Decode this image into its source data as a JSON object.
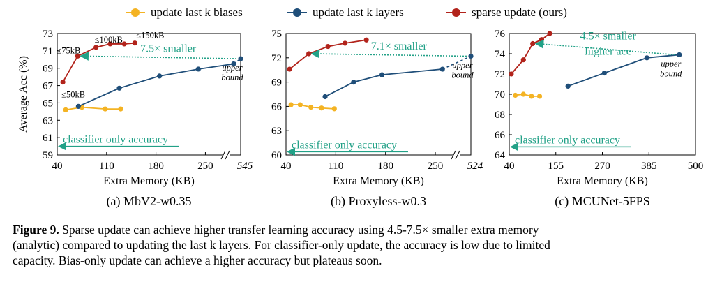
{
  "legend": {
    "biases": "update last k biases",
    "layers": "update last k layers",
    "sparse": "sparse update (ours)"
  },
  "colors": {
    "biases": "#f4b323",
    "layers": "#1f4e79",
    "sparse": "#b2231b",
    "arrow": "#22a187",
    "classifier": "#22a187"
  },
  "chart_data": [
    {
      "type": "line",
      "title": "(a)  MbV2-w0.35",
      "xlabel": "Extra Memory (KB)",
      "ylabel": "Average Acc (%)",
      "ylim": [
        59,
        73
      ],
      "yticks": [
        59,
        61,
        63,
        65,
        67,
        69,
        71,
        73
      ],
      "xlim": [
        40,
        300
      ],
      "xticks": [
        40,
        110,
        180,
        250
      ],
      "break_label": "545",
      "series": [
        {
          "name": "update last k biases",
          "x": [
            52,
            75,
            108,
            130
          ],
          "y": [
            64.2,
            64.5,
            64.3,
            64.3
          ]
        },
        {
          "name": "update last k layers",
          "x": [
            70,
            128,
            185,
            240,
            290
          ],
          "y": [
            64.6,
            66.7,
            68.1,
            68.9,
            69.5
          ]
        },
        {
          "name": "sparse update (ours)",
          "x": [
            48,
            69,
            95,
            115,
            135,
            150
          ],
          "y": [
            67.4,
            70.4,
            71.4,
            71.8,
            71.8,
            71.9
          ]
        }
      ],
      "break_point": {
        "x": 325,
        "y": 70.1
      },
      "point_labels": [
        "≤50kB",
        "≤75kB",
        "≤100kB",
        "≤150kB"
      ],
      "arrow_label": "7.5× smaller",
      "upper_bound_label": [
        "upper",
        "bound"
      ],
      "classifier_label": "classifier only accuracy",
      "classifier_y": 60.0
    },
    {
      "type": "line",
      "title": "(b)  Proxyless-w0.3",
      "xlabel": "Extra Memory (KB)",
      "ylabel": "",
      "ylim": [
        60,
        75
      ],
      "yticks": [
        60,
        63,
        66,
        69,
        72,
        75
      ],
      "xlim": [
        40,
        300
      ],
      "xticks": [
        40,
        110,
        180,
        250
      ],
      "break_label": "524",
      "series": [
        {
          "name": "update last k biases",
          "x": [
            47,
            60,
            75,
            90,
            108
          ],
          "y": [
            66.2,
            66.2,
            65.9,
            65.8,
            65.7
          ]
        },
        {
          "name": "update last k layers",
          "x": [
            95,
            135,
            175,
            260
          ],
          "y": [
            67.2,
            69.0,
            69.9,
            70.6
          ]
        },
        {
          "name": "sparse update (ours)",
          "x": [
            45,
            72,
            99,
            123,
            153
          ],
          "y": [
            70.6,
            72.5,
            73.4,
            73.8,
            74.2
          ]
        }
      ],
      "break_point": {
        "x": 312,
        "y": 72.2
      },
      "point_labels": [],
      "arrow_label": "7.1× smaller",
      "upper_bound_label": [
        "upper",
        "bound"
      ],
      "classifier_label": "classifier only accuracy",
      "classifier_y": 60.4
    },
    {
      "type": "line",
      "title": "(c)  MCUNet-5FPS",
      "xlabel": "Extra Memory (KB)",
      "ylabel": "",
      "ylim": [
        64,
        76
      ],
      "yticks": [
        64,
        66,
        68,
        70,
        72,
        74,
        76
      ],
      "xlim": [
        40,
        500
      ],
      "xticks": [
        40,
        155,
        270,
        385,
        500
      ],
      "break_label": "",
      "series": [
        {
          "name": "update last k biases",
          "x": [
            55,
            75,
            95,
            115
          ],
          "y": [
            69.9,
            70.0,
            69.8,
            69.8
          ]
        },
        {
          "name": "update last k layers",
          "x": [
            185,
            275,
            380,
            460
          ],
          "y": [
            70.8,
            72.1,
            73.6,
            73.9
          ]
        },
        {
          "name": "sparse update (ours)",
          "x": [
            45,
            75,
            98,
            120,
            140
          ],
          "y": [
            72.0,
            73.4,
            75.0,
            75.4,
            76.0
          ]
        }
      ],
      "arrow_label": "4.5× smaller",
      "arrow_label2": "higher acc",
      "upper_bound_label": [
        "upper",
        "bound"
      ],
      "classifier_label": "classifier only accuracy",
      "classifier_y": 64.8
    }
  ],
  "caption": {
    "label": "Figure 9.",
    "line1": " Sparse update can achieve higher transfer learning accuracy using 4.5-7.5× smaller extra memory",
    "line2": "(analytic) compared to updating the last k layers. For classifier-only update, the accuracy is low due to limited",
    "line3": "capacity. Bias-only update can achieve a higher accuracy but plateaus soon."
  }
}
